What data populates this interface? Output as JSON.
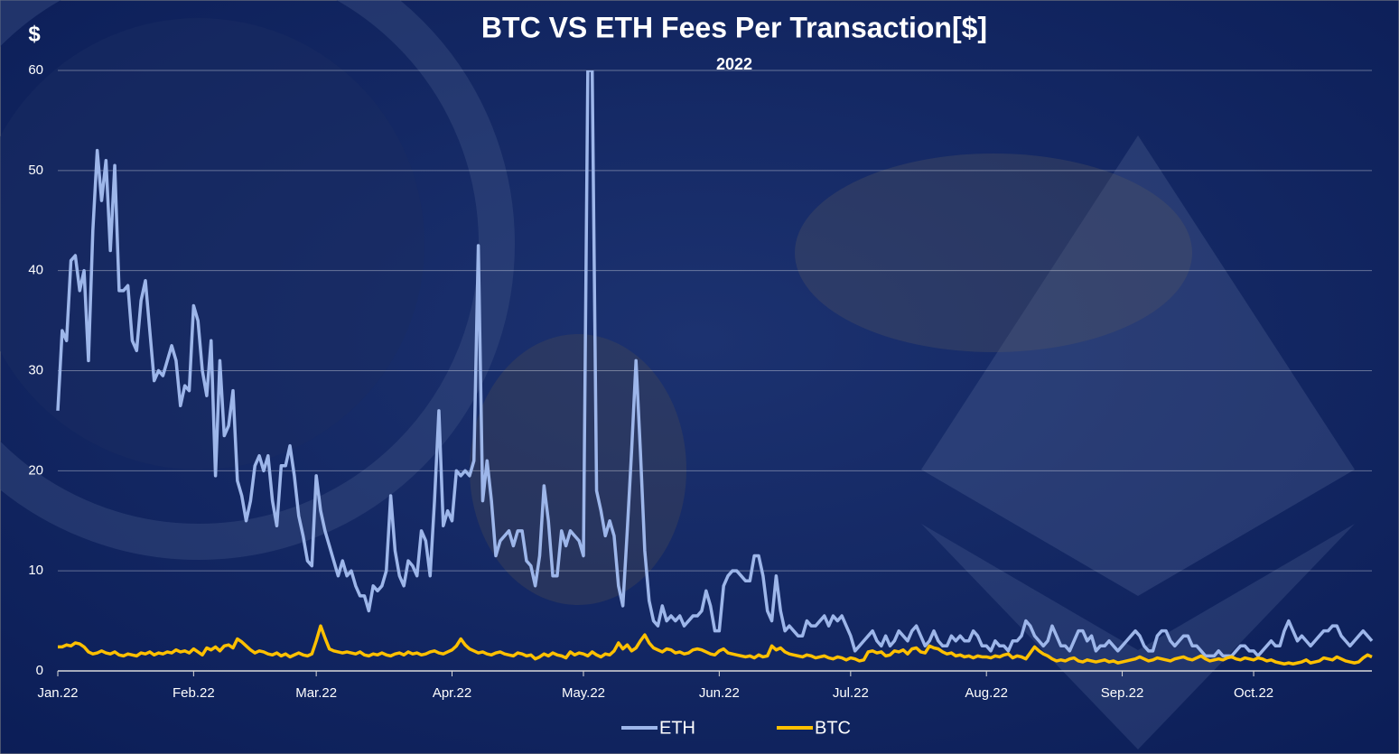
{
  "chart_data": {
    "type": "line",
    "title": "BTC VS ETH Fees Per Transaction[$]",
    "subtitle": "2022",
    "y_axis_label": "$",
    "categories": [
      "Jan.22",
      null,
      null,
      null,
      null,
      null,
      null,
      null,
      null,
      null,
      null,
      null,
      null,
      null,
      null,
      null,
      null,
      null,
      null,
      null,
      null,
      null,
      null,
      null,
      null,
      null,
      null,
      null,
      null,
      null,
      null,
      "Feb.22",
      null,
      null,
      null,
      null,
      null,
      null,
      null,
      null,
      null,
      null,
      null,
      null,
      null,
      null,
      null,
      null,
      null,
      null,
      null,
      null,
      null,
      null,
      null,
      null,
      null,
      null,
      null,
      "Mar.22",
      null,
      null,
      null,
      null,
      null,
      null,
      null,
      null,
      null,
      null,
      null,
      null,
      null,
      null,
      null,
      null,
      null,
      null,
      null,
      null,
      null,
      null,
      null,
      null,
      null,
      null,
      null,
      null,
      null,
      null,
      "Apr.22",
      null,
      null,
      null,
      null,
      null,
      null,
      null,
      null,
      null,
      null,
      null,
      null,
      null,
      null,
      null,
      null,
      null,
      null,
      null,
      null,
      null,
      null,
      null,
      null,
      null,
      null,
      null,
      null,
      null,
      "May.22",
      null,
      null,
      null,
      null,
      null,
      null,
      null,
      null,
      null,
      null,
      null,
      null,
      null,
      null,
      null,
      null,
      null,
      null,
      null,
      null,
      null,
      null,
      null,
      null,
      null,
      null,
      null,
      null,
      null,
      null,
      "Jun.22",
      null,
      null,
      null,
      null,
      null,
      null,
      null,
      null,
      null,
      null,
      null,
      null,
      null,
      null,
      null,
      null,
      null,
      null,
      null,
      null,
      null,
      null,
      null,
      null,
      null,
      null,
      null,
      null,
      null,
      "Jul.22",
      null,
      null,
      null,
      null,
      null,
      null,
      null,
      null,
      null,
      null,
      null,
      null,
      null,
      null,
      null,
      null,
      null,
      null,
      null,
      null,
      null,
      null,
      null,
      null,
      null,
      null,
      null,
      null,
      null,
      null,
      "Aug.22",
      null,
      null,
      null,
      null,
      null,
      null,
      null,
      null,
      null,
      null,
      null,
      null,
      null,
      null,
      null,
      null,
      null,
      null,
      null,
      null,
      null,
      null,
      null,
      null,
      null,
      null,
      null,
      null,
      null,
      null,
      "Sep.22",
      null,
      null,
      null,
      null,
      null,
      null,
      null,
      null,
      null,
      null,
      null,
      null,
      null,
      null,
      null,
      null,
      null,
      null,
      null,
      null,
      null,
      null,
      null,
      null,
      null,
      null,
      null,
      null,
      null,
      "Oct.22",
      null,
      null,
      null,
      null,
      null,
      null,
      null,
      null,
      null,
      null,
      null,
      null,
      null,
      null,
      null,
      null,
      null,
      null,
      null,
      null,
      null,
      null,
      null,
      null,
      null,
      null,
      null
    ],
    "series": [
      {
        "name": "ETH",
        "color": "#9db6ea",
        "values": [
          26,
          34,
          33,
          41,
          41.5,
          38,
          40,
          31,
          44,
          52,
          47,
          51,
          42,
          50.5,
          38,
          38,
          38.5,
          33,
          32,
          37,
          39,
          34,
          29,
          30,
          29.5,
          31,
          32.5,
          31,
          26.5,
          28.5,
          28,
          36.5,
          35,
          30,
          27.5,
          33,
          19.5,
          31,
          23.5,
          24.5,
          28,
          19,
          17.5,
          15,
          17,
          20.5,
          21.5,
          20,
          21.5,
          17,
          14.5,
          20.5,
          20.5,
          22.5,
          19.5,
          15.5,
          13.5,
          11,
          10.5,
          19.5,
          16,
          14,
          12.5,
          11,
          9.5,
          11,
          9.5,
          10,
          8.5,
          7.5,
          7.5,
          6,
          8.5,
          8,
          8.5,
          10,
          17.5,
          12,
          9.5,
          8.5,
          11,
          10.5,
          9.5,
          14,
          13,
          9.5,
          17,
          26,
          14.5,
          16,
          15,
          20,
          19.5,
          20,
          19.5,
          21,
          42.5,
          17,
          21,
          17,
          11.5,
          13,
          13.5,
          14,
          12.5,
          14,
          14,
          11,
          10.5,
          8.5,
          11.5,
          18.5,
          15,
          9.5,
          9.5,
          14,
          12.5,
          14,
          13.5,
          13,
          11.5,
          60,
          60,
          18,
          16,
          13.5,
          15,
          13.5,
          8.5,
          6.5,
          14,
          22,
          31,
          22,
          12,
          7,
          5,
          4.5,
          6.5,
          5,
          5.5,
          5,
          5.5,
          4.5,
          5,
          5.5,
          5.5,
          6,
          8,
          6.5,
          4,
          4,
          8.5,
          9.5,
          10,
          10,
          9.5,
          9,
          9,
          11.5,
          11.5,
          9.5,
          6,
          5,
          9.5,
          6,
          4,
          4.5,
          4,
          3.5,
          3.5,
          5,
          4.5,
          4.5,
          5,
          5.5,
          4.5,
          5.5,
          5,
          5.5,
          4.5,
          3.5,
          2,
          2.5,
          3,
          3.5,
          4,
          3,
          2.5,
          3.5,
          2.5,
          3,
          4,
          3.5,
          3,
          4,
          4.5,
          3.5,
          2.5,
          3,
          4,
          3,
          2.5,
          2.5,
          3.5,
          3,
          3.5,
          3,
          3,
          4,
          3.5,
          2.5,
          2.5,
          2,
          3,
          2.5,
          2.5,
          2,
          3,
          3,
          3.5,
          5,
          4.5,
          3.5,
          3,
          2.5,
          3,
          4.5,
          3.5,
          2.5,
          2.5,
          2,
          3,
          4,
          4,
          3,
          3.5,
          2,
          2.5,
          2.5,
          3,
          2.5,
          2,
          2.5,
          3,
          3.5,
          4,
          3.5,
          2.5,
          2,
          2,
          3.5,
          4,
          4,
          3,
          2.5,
          3,
          3.5,
          3.5,
          2.5,
          2.5,
          2,
          1.5,
          1.5,
          1.5,
          2,
          1.5,
          1.5,
          1.5,
          2,
          2.5,
          2.5,
          2,
          2,
          1.5,
          2,
          2.5,
          3,
          2.5,
          2.5,
          4,
          5,
          4,
          3,
          3.5,
          3,
          2.5,
          3,
          3.5,
          4,
          4,
          4.5,
          4.5,
          3.5,
          3,
          2.5,
          3,
          3.5,
          4,
          3.5,
          3
        ]
      },
      {
        "name": "BTC",
        "color": "#ffc000",
        "values": [
          2.4,
          2.4,
          2.6,
          2.5,
          2.8,
          2.7,
          2.4,
          1.9,
          1.7,
          1.8,
          2,
          1.8,
          1.7,
          1.9,
          1.6,
          1.5,
          1.7,
          1.6,
          1.5,
          1.8,
          1.7,
          1.9,
          1.6,
          1.8,
          1.7,
          1.9,
          1.8,
          2.1,
          1.9,
          2,
          1.8,
          2.2,
          1.9,
          1.6,
          2.3,
          2.1,
          2.4,
          2,
          2.5,
          2.6,
          2.3,
          3.2,
          2.9,
          2.5,
          2.1,
          1.8,
          2,
          1.9,
          1.7,
          1.6,
          1.8,
          1.5,
          1.7,
          1.4,
          1.6,
          1.8,
          1.6,
          1.5,
          1.7,
          3,
          4.5,
          3.3,
          2.2,
          2,
          1.9,
          1.8,
          1.9,
          1.8,
          1.7,
          1.9,
          1.6,
          1.5,
          1.7,
          1.6,
          1.8,
          1.6,
          1.5,
          1.7,
          1.8,
          1.6,
          1.9,
          1.7,
          1.8,
          1.6,
          1.7,
          1.9,
          2,
          1.8,
          1.7,
          1.9,
          2.1,
          2.5,
          3.2,
          2.6,
          2.2,
          2,
          1.8,
          1.9,
          1.7,
          1.6,
          1.8,
          1.9,
          1.7,
          1.6,
          1.5,
          1.8,
          1.7,
          1.5,
          1.6,
          1.2,
          1.4,
          1.7,
          1.5,
          1.8,
          1.6,
          1.5,
          1.3,
          1.9,
          1.6,
          1.8,
          1.7,
          1.5,
          1.9,
          1.6,
          1.4,
          1.7,
          1.6,
          2,
          2.8,
          2.2,
          2.6,
          2,
          2.3,
          3,
          3.6,
          2.8,
          2.3,
          2.1,
          1.9,
          2.2,
          2.1,
          1.8,
          1.9,
          1.7,
          1.8,
          2.1,
          2.2,
          2.1,
          1.9,
          1.7,
          1.6,
          2,
          2.2,
          1.8,
          1.7,
          1.6,
          1.5,
          1.4,
          1.5,
          1.3,
          1.6,
          1.4,
          1.5,
          2.5,
          2.1,
          2.3,
          1.9,
          1.7,
          1.6,
          1.5,
          1.4,
          1.6,
          1.5,
          1.3,
          1.4,
          1.5,
          1.3,
          1.2,
          1.4,
          1.3,
          1.1,
          1.3,
          1.2,
          1,
          1.1,
          1.9,
          2,
          1.8,
          1.9,
          1.5,
          1.6,
          2,
          1.9,
          2.1,
          1.7,
          2.2,
          2.3,
          1.9,
          1.8,
          2.5,
          2.3,
          2.2,
          1.9,
          1.7,
          1.8,
          1.5,
          1.6,
          1.4,
          1.5,
          1.3,
          1.5,
          1.4,
          1.4,
          1.3,
          1.5,
          1.4,
          1.6,
          1.7,
          1.3,
          1.5,
          1.4,
          1.2,
          1.8,
          2.4,
          2,
          1.7,
          1.5,
          1.2,
          1,
          1.1,
          1,
          1.2,
          1.3,
          1,
          0.9,
          1.1,
          1,
          0.9,
          1,
          1.1,
          0.9,
          1,
          0.8,
          0.9,
          1,
          1.1,
          1.2,
          1.4,
          1.2,
          1,
          1.1,
          1.3,
          1.2,
          1.1,
          1,
          1.2,
          1.3,
          1.4,
          1.2,
          1.1,
          1.3,
          1.5,
          1.2,
          1,
          1.1,
          1.2,
          1.1,
          1.3,
          1.4,
          1.2,
          1.1,
          1.3,
          1.2,
          1.1,
          1.3,
          1.2,
          1,
          1.1,
          0.9,
          0.8,
          0.7,
          0.8,
          0.7,
          0.8,
          0.9,
          1.1,
          0.8,
          0.9,
          1,
          1.3,
          1.2,
          1.1,
          1.4,
          1.2,
          1,
          0.9,
          0.8,
          0.9,
          1.3,
          1.6,
          1.4
        ]
      }
    ],
    "ylim": [
      0,
      60
    ],
    "yticks": [
      0,
      10,
      20,
      30,
      40,
      50,
      60
    ],
    "grid": true,
    "legend": "bottom"
  }
}
